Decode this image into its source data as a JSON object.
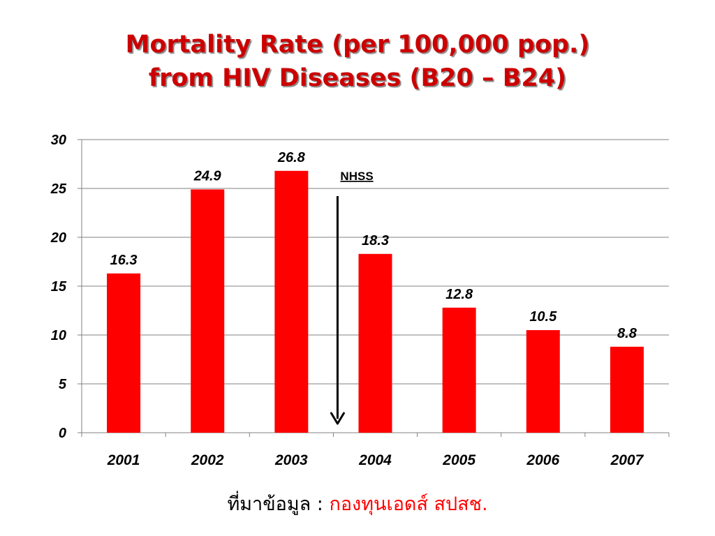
{
  "title": {
    "line1": "Mortality Rate (per 100,000 pop.)",
    "line2": "from HIV Diseases (B20 – B24)"
  },
  "source": {
    "label": "ที่มาข้อมูล : ",
    "value": "กองทุนเอดส์ สปสช."
  },
  "colors": {
    "bar": "#ff0000",
    "title": "#cc0000",
    "grid": "#808080"
  },
  "chart_data": {
    "type": "bar",
    "categories": [
      "2001",
      "2002",
      "2003",
      "2004",
      "2005",
      "2006",
      "2007"
    ],
    "values": [
      16.3,
      24.9,
      26.8,
      18.3,
      12.8,
      10.5,
      8.8
    ],
    "value_labels": [
      "16.3",
      "24.9",
      "26.8",
      "18.3",
      "12.8",
      "10.5",
      "8.8"
    ],
    "title": "Mortality Rate (per 100,000 pop.) from HIV Diseases (B20 – B24)",
    "xlabel": "",
    "ylabel": "",
    "ylim": [
      0,
      30
    ],
    "yticks": [
      0,
      5,
      10,
      15,
      20,
      25,
      30
    ],
    "grid": true,
    "legend": "none",
    "annotations": [
      {
        "text": "NHSS",
        "between": [
          "2003",
          "2004"
        ],
        "arrow": "down"
      }
    ]
  }
}
